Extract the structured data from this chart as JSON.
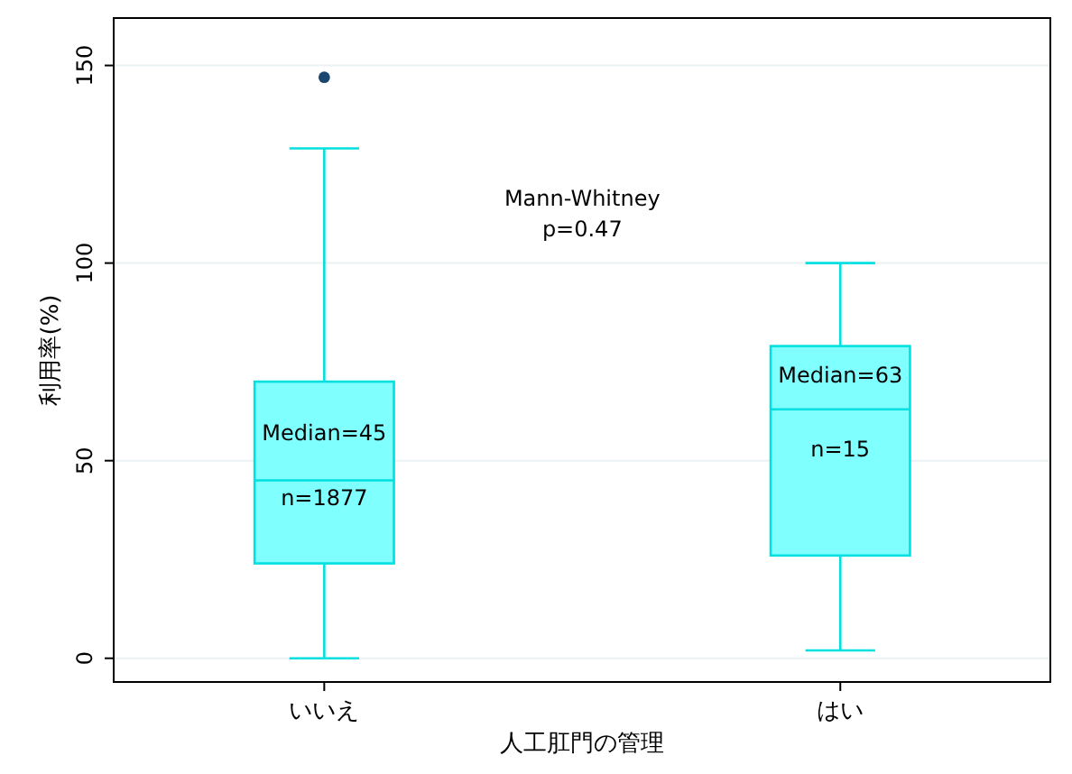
{
  "chart_data": {
    "type": "box",
    "xlabel": "人工肛門の管理",
    "ylabel": "利用率(%)",
    "categories": [
      "いいえ",
      "はい"
    ],
    "boxes": [
      {
        "low": 0,
        "q1": 24,
        "median": 45,
        "q3": 70,
        "high": 129,
        "outliers": [
          147
        ]
      },
      {
        "low": 2,
        "q1": 26,
        "median": 63,
        "q3": 79,
        "high": 100
      }
    ],
    "color": "#80ffff",
    "ylim": [
      -6,
      162
    ],
    "yticks": [
      0,
      50,
      100,
      150
    ],
    "grid": "y",
    "annotations": [
      "Median=45",
      "n=1877",
      "Median=63",
      "n=15",
      "Mann-Whitney\np=0.47"
    ]
  }
}
